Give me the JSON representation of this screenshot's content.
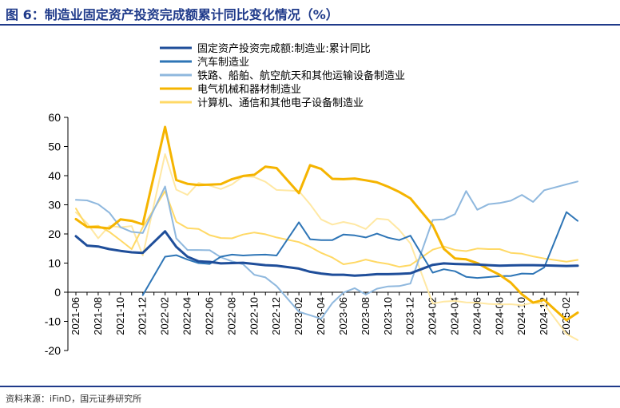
{
  "header": {
    "title": "图 6：制造业固定资产投资完成额累计同比变化情况（%）"
  },
  "footer": {
    "source": "资料来源：iFinD，国元证券研究所"
  },
  "chart_data": {
    "type": "line",
    "title": "图 6：制造业固定资产投资完成额累计同比变化情况（%）",
    "xlabel": "",
    "ylabel": "",
    "ylim": [
      -20,
      60
    ],
    "yticks": [
      -20,
      -10,
      0,
      10,
      20,
      30,
      40,
      50,
      60
    ],
    "grid": false,
    "legend_position": "top",
    "x_start": "2021-06",
    "x": [
      "2021-06",
      "2021-07",
      "2021-08",
      "2021-09",
      "2021-10",
      "2021-11",
      "2021-12",
      "2022-01",
      "2022-02",
      "2022-03",
      "2022-04",
      "2022-05",
      "2022-06",
      "2022-07",
      "2022-08",
      "2022-09",
      "2022-10",
      "2022-11",
      "2022-12",
      "2023-01",
      "2023-02",
      "2023-03",
      "2023-04",
      "2023-05",
      "2023-06",
      "2023-07",
      "2023-08",
      "2023-09",
      "2023-10",
      "2023-11",
      "2023-12",
      "2024-01",
      "2024-02",
      "2024-03",
      "2024-04",
      "2024-05",
      "2024-06",
      "2024-07",
      "2024-08",
      "2024-09",
      "2024-10",
      "2024-11",
      "2024-12",
      "2025-01",
      "2025-02",
      "2025-03"
    ],
    "xtick_labels": [
      "2021-06",
      "2021-08",
      "2021-10",
      "2021-12",
      "2022-02",
      "2022-04",
      "2022-06",
      "2022-08",
      "2022-10",
      "2022-12",
      "2023-02",
      "2023-04",
      "2023-06",
      "2023-08",
      "2023-10",
      "2023-12",
      "2024-02",
      "2024-04",
      "2024-06",
      "2024-08",
      "2024-10",
      "2024-12",
      "2025-02"
    ],
    "series": [
      {
        "name": "固定资产投资完成额:制造业:累计同比",
        "color": "#1f4e9a",
        "width": 3,
        "values": [
          19.2,
          16.0,
          15.7,
          14.8,
          14.2,
          13.7,
          13.5,
          null,
          20.9,
          15.6,
          12.2,
          10.6,
          10.4,
          9.9,
          10.0,
          10.1,
          9.7,
          9.3,
          9.1,
          null,
          8.1,
          7.0,
          6.4,
          6.0,
          6.0,
          5.7,
          5.9,
          6.2,
          6.2,
          6.3,
          6.5,
          null,
          9.4,
          9.9,
          9.7,
          9.6,
          9.5,
          9.3,
          9.1,
          9.2,
          9.3,
          9.3,
          9.2,
          null,
          9.0,
          9.1
        ]
      },
      {
        "name": "汽车制造业",
        "color": "#2e75b6",
        "width": 2,
        "values": [
          null,
          null,
          null,
          null,
          null,
          null,
          -1.0,
          null,
          12.2,
          12.7,
          11.2,
          10.0,
          9.7,
          12.2,
          12.9,
          12.6,
          12.8,
          12.9,
          12.6,
          null,
          24.0,
          18.2,
          17.9,
          17.9,
          19.8,
          19.5,
          18.8,
          20.1,
          18.7,
          17.9,
          19.4,
          null,
          6.7,
          7.9,
          7.2,
          5.3,
          4.9,
          5.2,
          5.5,
          5.6,
          6.4,
          6.3,
          8.5,
          null,
          27.5,
          24.5
        ]
      },
      {
        "name": "铁路、船舶、航空航天和其他运输设备制造业",
        "color": "#8fb8de",
        "width": 2,
        "values": [
          31.7,
          31.5,
          30.2,
          27.3,
          22.3,
          20.7,
          20.3,
          null,
          36.3,
          18.5,
          14.5,
          14.5,
          14.4,
          12.0,
          10.6,
          9.6,
          6.0,
          5.1,
          2.1,
          null,
          -6.7,
          -7.9,
          -9.1,
          -3.7,
          -0.1,
          1.4,
          -0.8,
          1.2,
          2.0,
          2.1,
          3.0,
          null,
          24.8,
          25.0,
          26.8,
          34.7,
          28.3,
          30.2,
          30.6,
          31.4,
          33.4,
          31.0,
          35.0,
          null,
          37.0,
          38.0
        ]
      },
      {
        "name": "电气机械和器材制造业",
        "color": "#f5b400",
        "width": 3,
        "values": [
          25.1,
          22.4,
          22.3,
          21.9,
          25.0,
          24.5,
          23.3,
          null,
          56.7,
          38.5,
          37.2,
          36.8,
          36.9,
          37.1,
          38.8,
          39.9,
          40.3,
          43.1,
          42.6,
          null,
          34.0,
          43.6,
          42.3,
          38.9,
          38.8,
          39.0,
          38.4,
          37.7,
          36.2,
          34.4,
          32.2,
          null,
          23.0,
          14.9,
          11.6,
          11.3,
          10.0,
          7.9,
          6.0,
          3.3,
          -0.7,
          -3.6,
          -2.6,
          null,
          -9.6,
          -7.0
        ]
      },
      {
        "name": "计算机、通信和其他电子设备制造业",
        "color": "#ffd966",
        "width": 2,
        "values": [
          28.7,
          22.5,
          22.8,
          20.7,
          17.8,
          14.8,
          22.3,
          null,
          34.7,
          24.2,
          22.0,
          21.7,
          19.6,
          18.6,
          18.5,
          19.8,
          20.5,
          19.9,
          18.8,
          null,
          17.2,
          15.6,
          13.5,
          11.9,
          9.6,
          10.2,
          11.2,
          10.3,
          9.7,
          8.7,
          9.3,
          null,
          14.6,
          15.7,
          14.5,
          14.1,
          15.0,
          14.8,
          14.8,
          13.5,
          13.2,
          12.3,
          11.6,
          null,
          10.5,
          11.1
        ]
      },
      {
        "name": "",
        "color": "#ffe8a3",
        "width": 2,
        "values": [
          27.4,
          23.7,
          18.5,
          22.8,
          22.3,
          22.7,
          12.6,
          null,
          47.4,
          35.2,
          33.4,
          37.5,
          36.6,
          35.4,
          37.0,
          39.8,
          39.5,
          37.9,
          35.1,
          null,
          34.7,
          30.2,
          25.0,
          23.2,
          24.1,
          23.3,
          21.7,
          25.3,
          24.9,
          21.4,
          16.7,
          null,
          -3.9,
          -3.2,
          -3.0,
          -3.5,
          -3.6,
          -4.0,
          -4.2,
          -4.1,
          -4.5,
          -3.6,
          -4.1,
          null,
          -14.3,
          -16.4
        ]
      }
    ]
  }
}
